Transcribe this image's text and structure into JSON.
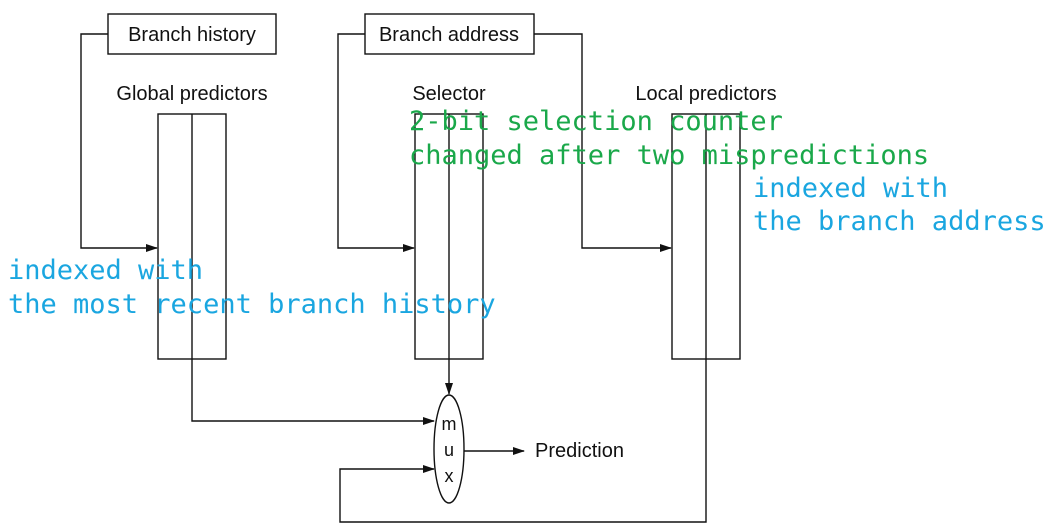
{
  "inputs": {
    "branch_history": "Branch history",
    "branch_address": "Branch address"
  },
  "tables": {
    "global": "Global predictors",
    "selector": "Selector",
    "local": "Local predictors"
  },
  "mux": [
    "m",
    "u",
    "x"
  ],
  "output": "Prediction",
  "annotations": {
    "selector_line1": "2-bit selection counter",
    "selector_line2": "changed after two mispredictions",
    "local_line1": "indexed with",
    "local_line2": "the branch address",
    "global_line1": "indexed with",
    "global_line2": "the most recent branch history"
  },
  "colors": {
    "green_annotation": "#1aa84a",
    "blue_annotation": "#1aa6e0",
    "line": "#111111"
  }
}
